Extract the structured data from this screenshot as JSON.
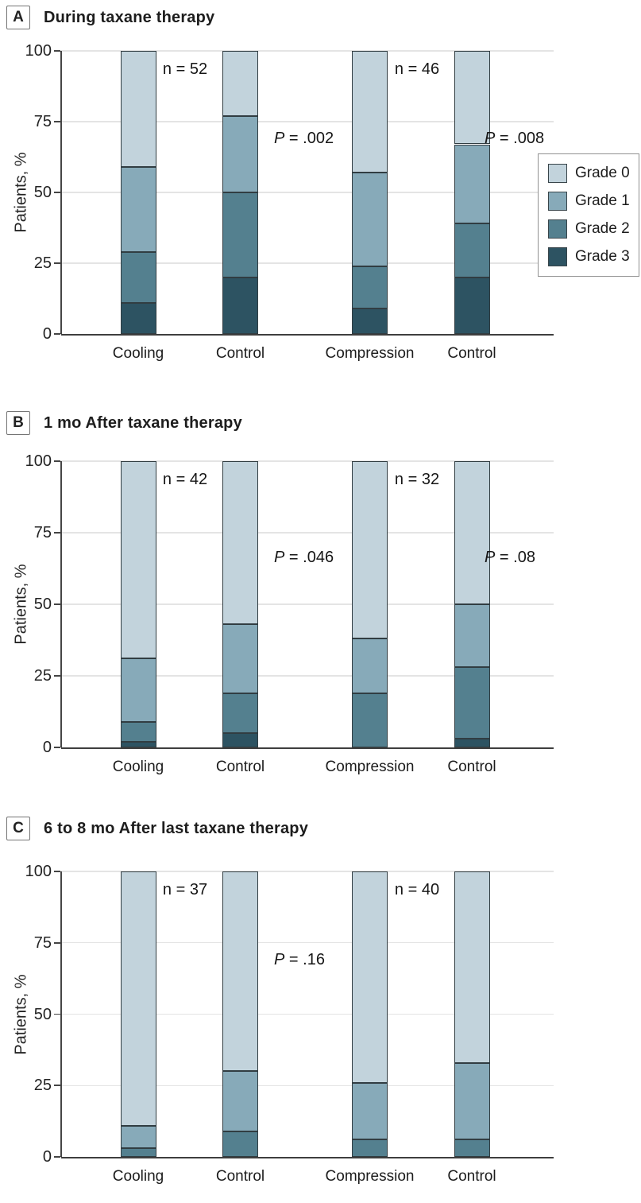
{
  "figure": {
    "y_axis_label": "Patients, %",
    "colors": {
      "grade0": "#c2d3dc",
      "grade1": "#87aab9",
      "grade2": "#54808f",
      "grade3": "#2d5362",
      "segment_border": "#313d42",
      "axis": "#454545",
      "gridline": "#e4e4e4",
      "text": "#1f1f1f"
    },
    "legend": {
      "position": "right-of-panel-A",
      "entries": [
        {
          "label": "Grade 0",
          "color_key": "grade0"
        },
        {
          "label": "Grade 1",
          "color_key": "grade1"
        },
        {
          "label": "Grade 2",
          "color_key": "grade2"
        },
        {
          "label": "Grade 3",
          "color_key": "grade3"
        }
      ]
    }
  },
  "chart_data": [
    {
      "type": "bar",
      "stacked": true,
      "panel_letter": "A",
      "title": "During taxane therapy",
      "categories": [
        "Cooling",
        "Control",
        "Compression",
        "Control"
      ],
      "stack_order_bottom_to_top": [
        "Grade 3",
        "Grade 2",
        "Grade 1",
        "Grade 0"
      ],
      "series": [
        {
          "name": "Grade 3",
          "color_key": "grade3",
          "values": [
            11,
            20,
            9,
            20
          ]
        },
        {
          "name": "Grade 2",
          "color_key": "grade2",
          "values": [
            18,
            30,
            15,
            19
          ]
        },
        {
          "name": "Grade 1",
          "color_key": "grade1",
          "values": [
            30,
            27,
            33,
            28
          ]
        },
        {
          "name": "Grade 0",
          "color_key": "grade0",
          "values": [
            41,
            23,
            43,
            33
          ]
        }
      ],
      "annotations": [
        {
          "label": "n = 52",
          "slot": "n1"
        },
        {
          "label": "P = .002",
          "slot": "p1",
          "italic_lead": true
        },
        {
          "label": "n = 46",
          "slot": "n2"
        },
        {
          "label": "P = .008",
          "slot": "p2",
          "italic_lead": true
        }
      ],
      "ylabel": "Patients, %",
      "ylim": [
        0,
        100
      ],
      "yticks": [
        0,
        25,
        50,
        75,
        100
      ],
      "grid": true
    },
    {
      "type": "bar",
      "stacked": true,
      "panel_letter": "B",
      "title": "1 mo After taxane therapy",
      "categories": [
        "Cooling",
        "Control",
        "Compression",
        "Control"
      ],
      "stack_order_bottom_to_top": [
        "Grade 3",
        "Grade 2",
        "Grade 1",
        "Grade 0"
      ],
      "series": [
        {
          "name": "Grade 3",
          "color_key": "grade3",
          "values": [
            2,
            5,
            0,
            3
          ]
        },
        {
          "name": "Grade 2",
          "color_key": "grade2",
          "values": [
            7,
            14,
            19,
            25
          ]
        },
        {
          "name": "Grade 1",
          "color_key": "grade1",
          "values": [
            22,
            24,
            19,
            22
          ]
        },
        {
          "name": "Grade 0",
          "color_key": "grade0",
          "values": [
            69,
            57,
            62,
            50
          ]
        }
      ],
      "annotations": [
        {
          "label": "n = 42",
          "slot": "n1"
        },
        {
          "label": "P = .046",
          "slot": "p1",
          "italic_lead": true
        },
        {
          "label": "n = 32",
          "slot": "n2"
        },
        {
          "label": "P = .08",
          "slot": "p2",
          "italic_lead": true
        }
      ],
      "ylabel": "Patients, %",
      "ylim": [
        0,
        100
      ],
      "yticks": [
        0,
        25,
        50,
        75,
        100
      ],
      "grid": true
    },
    {
      "type": "bar",
      "stacked": true,
      "panel_letter": "C",
      "title": "6 to 8 mo After last taxane therapy",
      "categories": [
        "Cooling",
        "Control",
        "Compression",
        "Control"
      ],
      "stack_order_bottom_to_top": [
        "Grade 3",
        "Grade 2",
        "Grade 1",
        "Grade 0"
      ],
      "series": [
        {
          "name": "Grade 3",
          "color_key": "grade3",
          "values": [
            0,
            0,
            0,
            0
          ]
        },
        {
          "name": "Grade 2",
          "color_key": "grade2",
          "values": [
            3,
            9,
            6,
            6
          ]
        },
        {
          "name": "Grade 1",
          "color_key": "grade1",
          "values": [
            8,
            21,
            20,
            27
          ]
        },
        {
          "name": "Grade 0",
          "color_key": "grade0",
          "values": [
            89,
            70,
            74,
            67
          ]
        }
      ],
      "annotations": [
        {
          "label": "n = 37",
          "slot": "n1"
        },
        {
          "label": "P = .16",
          "slot": "p1",
          "italic_lead": true
        },
        {
          "label": "n = 40",
          "slot": "n2"
        }
      ],
      "ylabel": "Patients, %",
      "ylim": [
        0,
        100
      ],
      "yticks": [
        0,
        25,
        50,
        75,
        100
      ],
      "grid": true
    }
  ]
}
